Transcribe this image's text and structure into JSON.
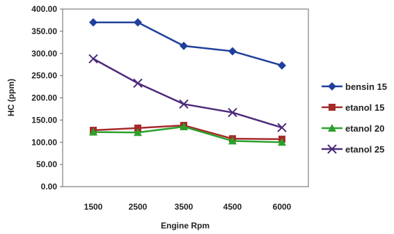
{
  "chart_data": {
    "type": "line",
    "title": "",
    "xlabel": "Engine Rpm",
    "ylabel": "HC (ppm)",
    "categories": [
      "1500",
      "2500",
      "3500",
      "4500",
      "6000"
    ],
    "yticks": [
      "0.00",
      "50.00",
      "100.00",
      "150.00",
      "200.00",
      "250.00",
      "300.00",
      "350.00",
      "400.00"
    ],
    "ylim": [
      0,
      400
    ],
    "grid": false,
    "legend_position": "right",
    "series": [
      {
        "name": "bensin 15",
        "color": "#1f3f9c",
        "marker": "diamond",
        "values": [
          370,
          370,
          317,
          305,
          273
        ]
      },
      {
        "name": "etanol 15",
        "color": "#a52a2a",
        "marker": "square",
        "values": [
          127,
          132,
          138,
          108,
          107
        ]
      },
      {
        "name": "etanol 20",
        "color": "#2ca02c",
        "marker": "triangle",
        "values": [
          123,
          122,
          135,
          103,
          100
        ]
      },
      {
        "name": "etanol 25",
        "color": "#4b2a7a",
        "marker": "x",
        "values": [
          288,
          233,
          186,
          167,
          133
        ]
      }
    ]
  }
}
